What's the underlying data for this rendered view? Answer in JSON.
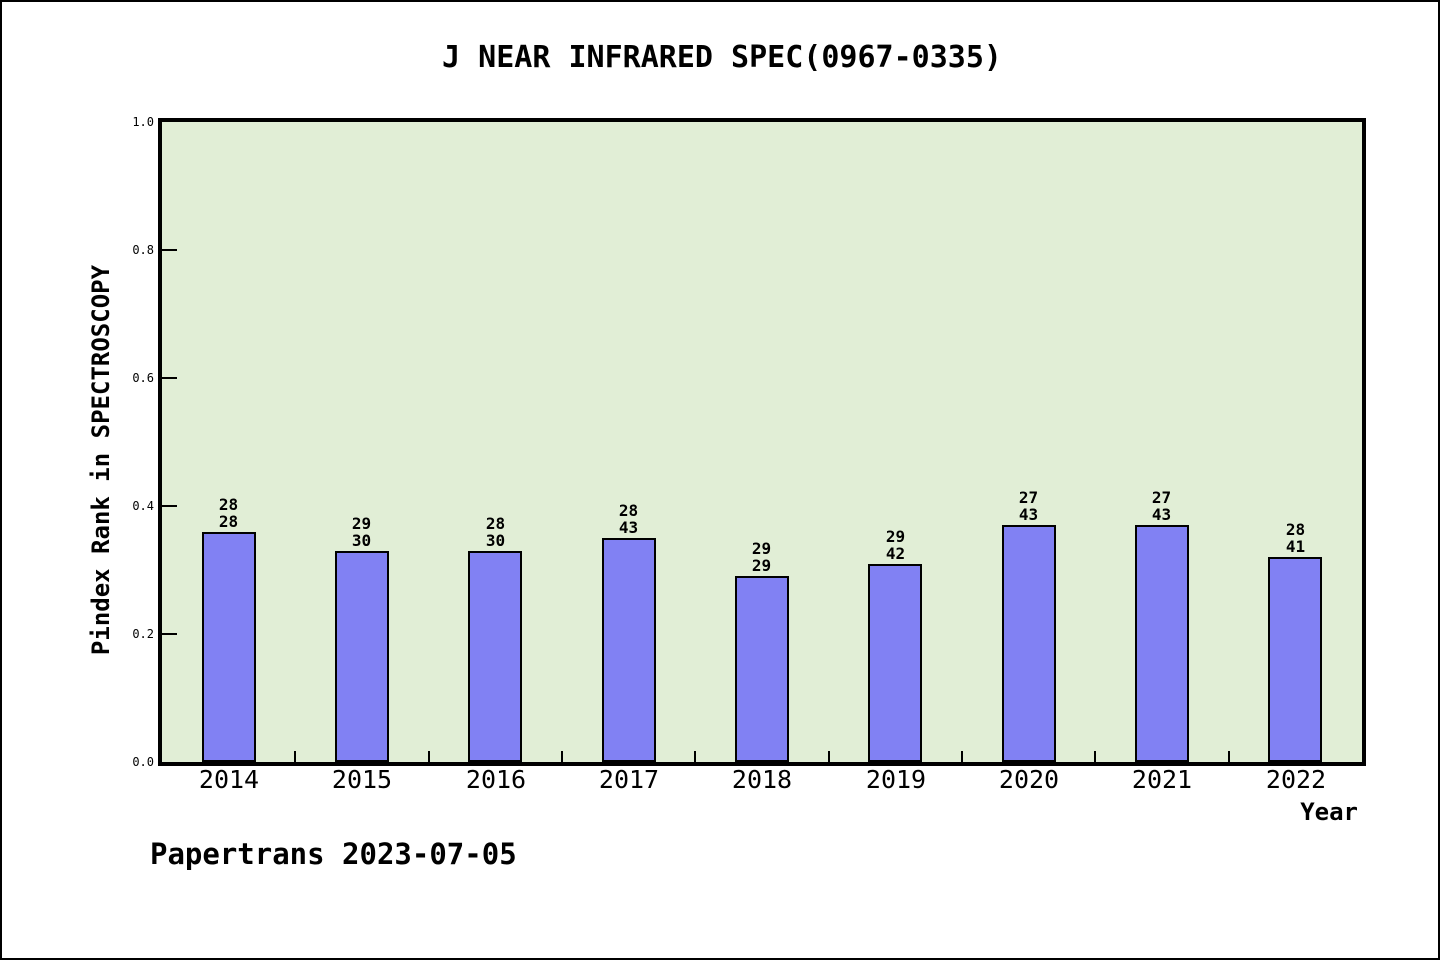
{
  "title": "J NEAR INFRARED SPEC(0967-0335)",
  "footer": "Papertrans 2023-07-05",
  "chart_data": {
    "type": "bar",
    "title": "J NEAR INFRARED SPEC(0967-0335)",
    "xlabel": "Year",
    "ylabel": "Pindex Rank in SPECTROSCOPY",
    "categories": [
      "2014",
      "2015",
      "2016",
      "2017",
      "2018",
      "2019",
      "2020",
      "2021",
      "2022"
    ],
    "values": [
      0.36,
      0.33,
      0.33,
      0.35,
      0.29,
      0.31,
      0.37,
      0.37,
      0.32
    ],
    "bar_labels": [
      [
        "28",
        "28"
      ],
      [
        "29",
        "30"
      ],
      [
        "28",
        "30"
      ],
      [
        "28",
        "43"
      ],
      [
        "29",
        "29"
      ],
      [
        "29",
        "42"
      ],
      [
        "27",
        "43"
      ],
      [
        "27",
        "43"
      ],
      [
        "28",
        "41"
      ]
    ],
    "ylim": [
      0.0,
      1.0
    ],
    "yticks": [
      "0.0",
      "0.2",
      "0.4",
      "0.6",
      "0.8",
      "1.0"
    ],
    "grid": "off",
    "legend": "none",
    "colors": {
      "bar_fill": "#8181f3",
      "bar_edge": "#000000",
      "plot_bg": "#e1eed6",
      "frame": "#000000",
      "page_bg": "#ffffff",
      "text": "#000000"
    }
  }
}
